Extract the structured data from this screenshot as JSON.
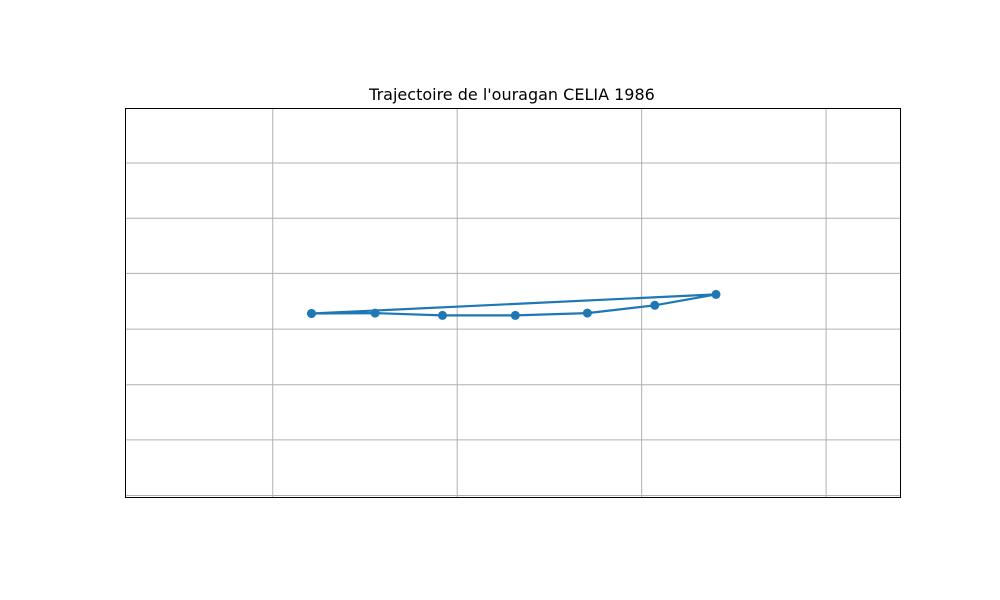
{
  "chart_data": {
    "type": "line",
    "title": "Trajectoire de l'ouragan CELIA 1986",
    "xlabel": "",
    "ylabel": "",
    "xlim": [
      0,
      100
    ],
    "ylim": [
      0,
      100
    ],
    "x_gridlines": [
      19,
      42.8,
      66.6,
      90.4
    ],
    "y_gridlines": [
      0.5,
      14.8,
      29,
      43.3,
      57.6,
      71.8,
      86
    ],
    "grid": true,
    "legend": "none",
    "series": [
      {
        "color": "#1f77b4",
        "x": [
          24,
          32.2,
          40.9,
          50.3,
          59.6,
          68.3,
          76.2,
          24
        ],
        "y": [
          47.3,
          47.4,
          46.8,
          46.8,
          47.4,
          49.4,
          52.2,
          47.3
        ]
      }
    ]
  }
}
